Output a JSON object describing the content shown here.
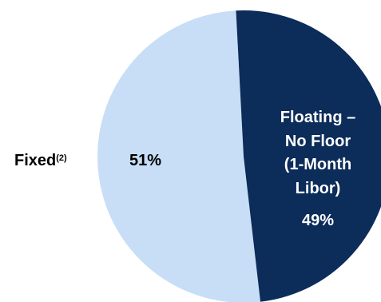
{
  "chart_data": {
    "type": "pie",
    "title": "",
    "slices": [
      {
        "label": "Fixed",
        "label_sup": "(2)",
        "value": 51,
        "value_label": "51%",
        "color": "#C8DEF6",
        "text_color": "#000000"
      },
      {
        "label_lines": [
          "Floating –",
          "No Floor",
          "(1-Month",
          "Libor)"
        ],
        "value": 49,
        "value_label": "49%",
        "color": "#0C2C5A",
        "text_color": "#FFFFFF"
      }
    ],
    "legend": "none"
  }
}
